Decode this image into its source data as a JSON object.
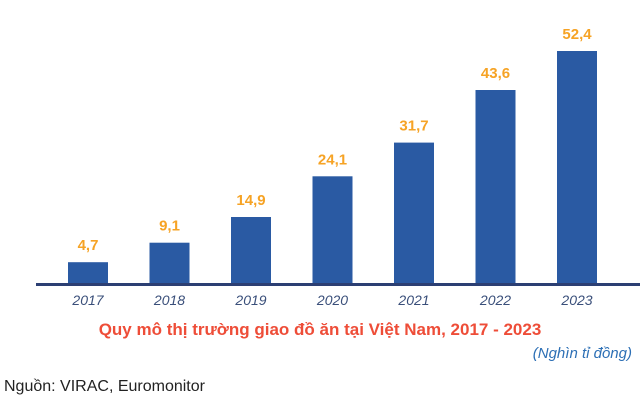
{
  "chart_data": {
    "type": "bar",
    "categories": [
      "2017",
      "2018",
      "2019",
      "2020",
      "2021",
      "2022",
      "2023"
    ],
    "values": [
      4.7,
      9.1,
      14.9,
      24.1,
      31.7,
      43.6,
      52.4
    ],
    "data_labels": [
      "4,7",
      "9,1",
      "14,9",
      "24,1",
      "31,7",
      "43,6",
      "52,4"
    ],
    "title": "Quy mô thị trường giao đồ ăn tại Việt Nam, 2017 - 2023",
    "unit": "(Nghìn tỉ đồng)",
    "ylim": [
      0,
      52.4
    ],
    "grid": false,
    "legend": "none",
    "colors": {
      "bar": "#2a5aa3",
      "label": "#f6a325",
      "tick": "#3a4f7a",
      "axis": "#2c3f73"
    }
  },
  "source": "Nguồn: VIRAC, Euromonitor"
}
